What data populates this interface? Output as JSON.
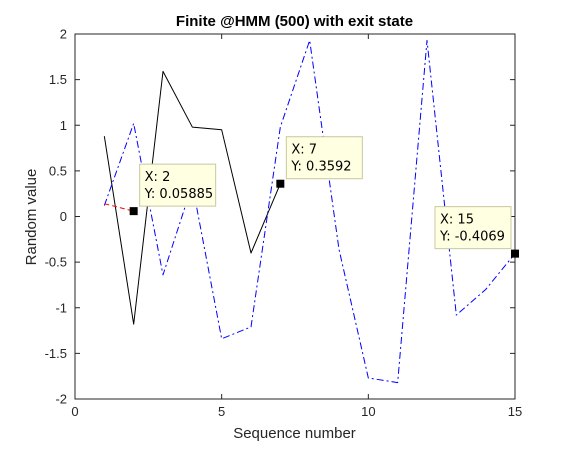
{
  "chart_data": {
    "type": "line",
    "title": "Finite @HMM (500) with exit state",
    "xlabel": "Sequence number",
    "ylabel": "Random value",
    "xlim": [
      0,
      15
    ],
    "ylim": [
      -2,
      2
    ],
    "xticks": [
      0,
      5,
      10,
      15
    ],
    "yticks": [
      -2,
      -1.5,
      -1,
      -0.5,
      0,
      0.5,
      1,
      1.5,
      2
    ],
    "grid": false,
    "series": [
      {
        "style": "solid",
        "color": "#000000",
        "x": [
          1,
          2,
          3,
          4,
          5,
          6,
          7
        ],
        "y": [
          0.88,
          -1.18,
          1.59,
          0.98,
          0.95,
          -0.4,
          0.3592
        ]
      },
      {
        "style": "dash-dot",
        "color": "#0000ff",
        "x": [
          1,
          2,
          3,
          4,
          5,
          6,
          7,
          8,
          9,
          10,
          11,
          12,
          13,
          14,
          15
        ],
        "y": [
          0.12,
          1.02,
          -0.64,
          0.35,
          -1.34,
          -1.21,
          0.98,
          1.93,
          -0.36,
          -1.77,
          -1.82,
          1.93,
          -1.08,
          -0.8,
          -0.4069
        ]
      },
      {
        "style": "dashed",
        "color": "#ff0000",
        "x": [
          1,
          2
        ],
        "y": [
          0.14,
          0.05885
        ]
      }
    ],
    "datatips": [
      {
        "x": 2,
        "y": 0.05885,
        "x_text": "X: 2",
        "y_text": "Y: 0.05885"
      },
      {
        "x": 7,
        "y": 0.3592,
        "x_text": "X: 7",
        "y_text": "Y: 0.3592"
      },
      {
        "x": 15,
        "y": -0.4069,
        "x_text": "X: 15",
        "y_text": "Y: -0.4069"
      }
    ],
    "colors": {
      "axes": "#262626",
      "tip_background": "#ffffe1",
      "tip_border": "#c8c8a0"
    }
  }
}
